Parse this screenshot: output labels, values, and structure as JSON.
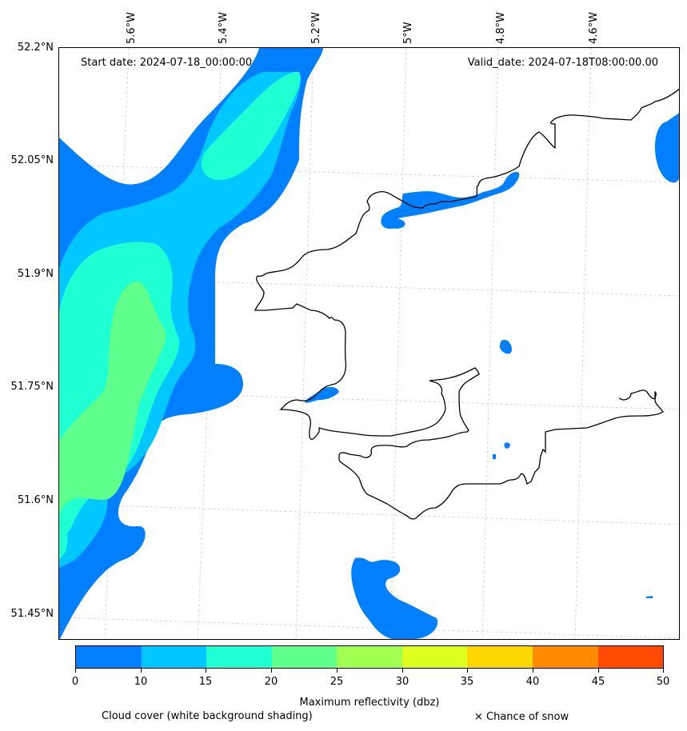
{
  "longitude_labels": [
    "5.6°W",
    "5.4°W",
    "5.2°W",
    "5°W",
    "4.8°W",
    "4.6°W"
  ],
  "latitude_labels": [
    "52.2°N",
    "52.05°N",
    "51.9°N",
    "51.75°N",
    "51.6°N",
    "51.45°N"
  ],
  "start_date": "Start date: 2024-07-18_00:00:00",
  "valid_date": "Valid_date: 2024-07-18T08:00:00.00",
  "colorbar": {
    "title": "Maximum reflectivity (dbz)",
    "tick_labels": [
      "0",
      "5",
      "10",
      "15",
      "20",
      "25",
      "30",
      "35",
      "40",
      "45",
      "50"
    ],
    "colors": [
      "#0080ff",
      "#00c8ff",
      "#1effd2",
      "#5fff8c",
      "#a0ff50",
      "#dcff1e",
      "#ffd700",
      "#ff8c00",
      "#ff4800"
    ]
  },
  "notes": {
    "cloud_cover": "Cloud cover (white background shading)",
    "snow": "× Chance of snow"
  },
  "colors": {
    "coastline": "#000000",
    "gridline": "#cccccc",
    "band_0_10": "#0080ff",
    "band_10_15": "#00c8ff",
    "band_15_20": "#1effd2",
    "band_20_25": "#5fff8c"
  }
}
